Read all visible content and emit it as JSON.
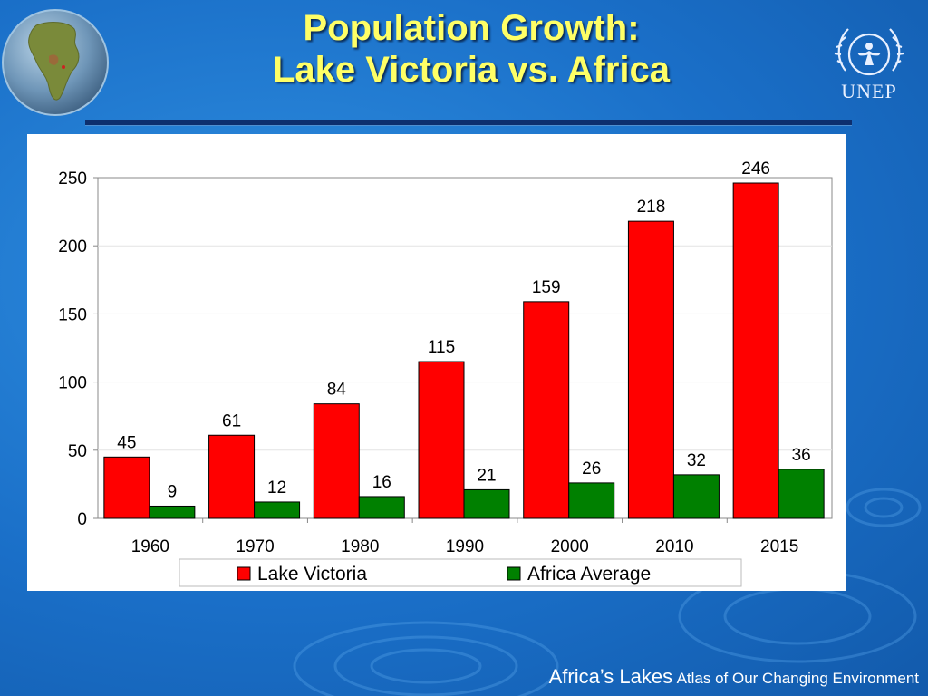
{
  "slide": {
    "title_line1": "Population Growth:",
    "title_line2": "Lake Victoria vs. Africa",
    "footer_main": "Africa’s Lakes",
    "footer_sub": "Atlas of Our Changing Environment",
    "logo_text": "UNEP"
  },
  "colors": {
    "lake_victoria": "#ff0000",
    "africa_average": "#008000",
    "title": "#ffff66",
    "background": "#1a6fc8"
  },
  "chart_data": {
    "type": "bar",
    "categories": [
      "1960",
      "1970",
      "1980",
      "1990",
      "2000",
      "2010",
      "2015"
    ],
    "series": [
      {
        "name": "Lake Victoria",
        "values": [
          45,
          61,
          84,
          115,
          159,
          218,
          246
        ],
        "color": "#ff0000"
      },
      {
        "name": "Africa Average",
        "values": [
          9,
          12,
          16,
          21,
          26,
          32,
          36
        ],
        "color": "#008000"
      }
    ],
    "ylim": [
      0,
      250
    ],
    "yticks": [
      0,
      50,
      100,
      150,
      200,
      250
    ],
    "grid": true,
    "legend_position": "bottom",
    "data_labels": true
  }
}
